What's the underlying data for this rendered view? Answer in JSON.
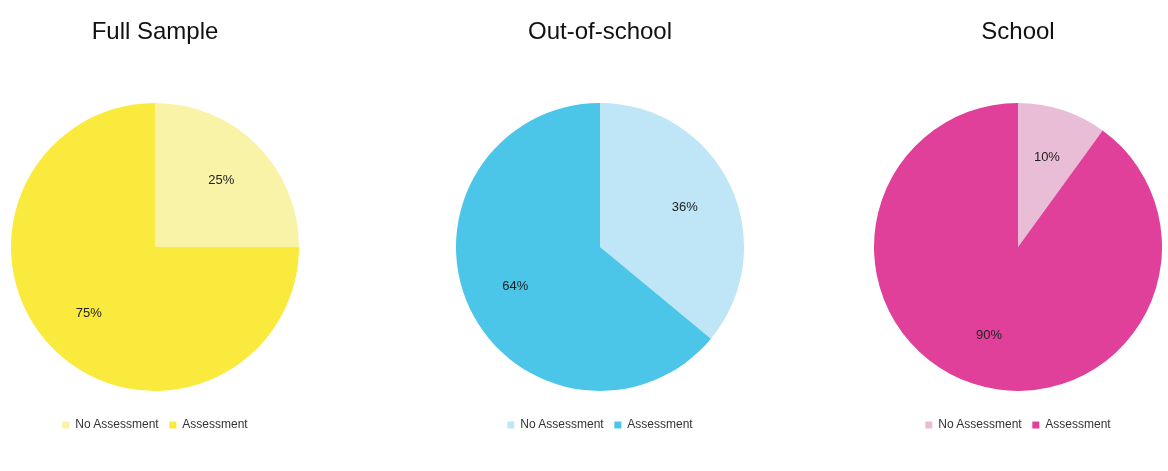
{
  "chart_data": [
    {
      "type": "pie",
      "title": "Full Sample",
      "categories": [
        "No Assessment",
        "Assessment"
      ],
      "values": [
        25,
        75
      ],
      "colors": [
        "#f9f3a8",
        "#fbea3e"
      ],
      "value_labels": [
        "25%",
        "75%"
      ],
      "legend": "bottom"
    },
    {
      "type": "pie",
      "title": "Out-of-school",
      "categories": [
        "No Assessment",
        "Assessment"
      ],
      "values": [
        36,
        64
      ],
      "colors": [
        "#bee6f7",
        "#4cc6e8"
      ],
      "value_labels": [
        "36%",
        "64%"
      ],
      "legend": "bottom"
    },
    {
      "type": "pie",
      "title": "School",
      "categories": [
        "No Assessment",
        "Assessment"
      ],
      "values": [
        10,
        90
      ],
      "colors": [
        "#e9bdd5",
        "#e0409a"
      ],
      "value_labels": [
        "10%",
        "90%"
      ],
      "legend": "bottom"
    }
  ]
}
